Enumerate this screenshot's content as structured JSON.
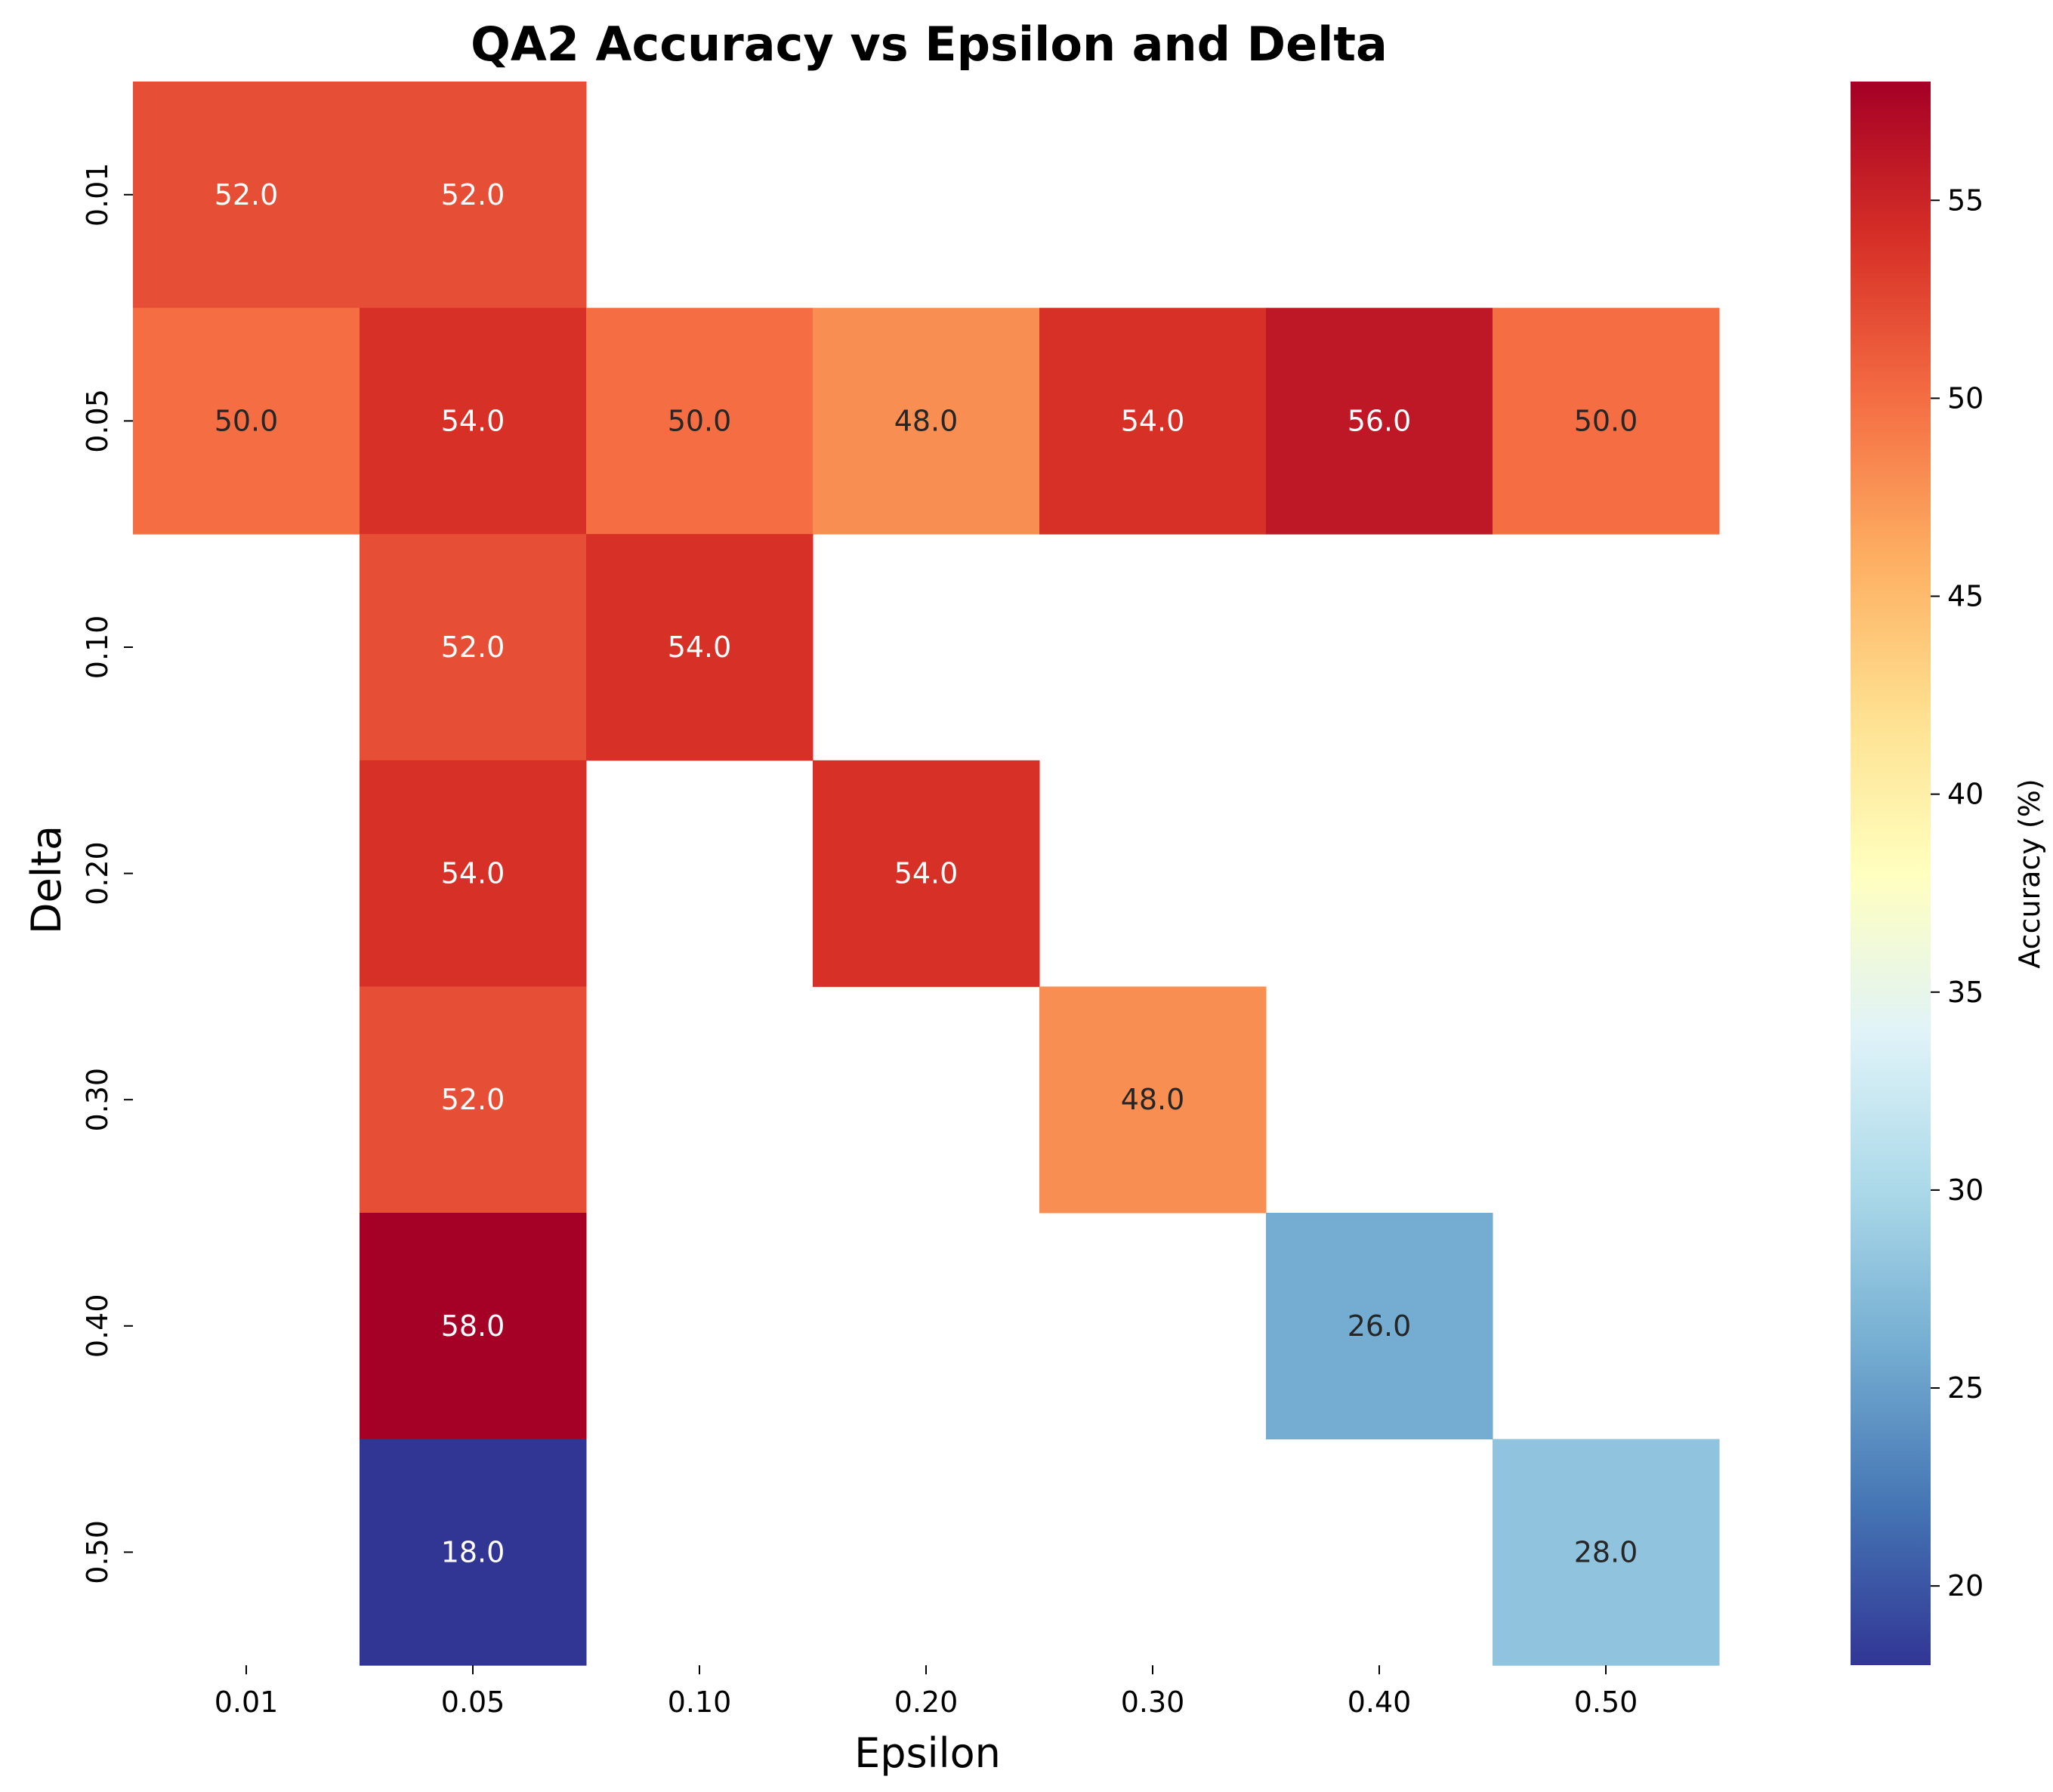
{
  "chart_data": {
    "type": "heatmap",
    "title": "QA2 Accuracy vs Epsilon and Delta",
    "xlabel": "Epsilon",
    "ylabel": "Delta",
    "x_categories": [
      "0.01",
      "0.05",
      "0.10",
      "0.20",
      "0.30",
      "0.40",
      "0.50"
    ],
    "y_categories": [
      "0.01",
      "0.05",
      "0.10",
      "0.20",
      "0.30",
      "0.40",
      "0.50"
    ],
    "values": [
      [
        52.0,
        52.0,
        null,
        null,
        null,
        null,
        null
      ],
      [
        50.0,
        54.0,
        50.0,
        48.0,
        54.0,
        56.0,
        50.0
      ],
      [
        null,
        52.0,
        54.0,
        null,
        null,
        null,
        null
      ],
      [
        null,
        54.0,
        null,
        54.0,
        null,
        null,
        null
      ],
      [
        null,
        52.0,
        null,
        null,
        48.0,
        null,
        null
      ],
      [
        null,
        58.0,
        null,
        null,
        null,
        26.0,
        null
      ],
      [
        null,
        18.0,
        null,
        null,
        null,
        null,
        28.0
      ]
    ],
    "cell_labels": [
      [
        "52.0",
        "52.0",
        "",
        "",
        "",
        "",
        ""
      ],
      [
        "50.0",
        "54.0",
        "50.0",
        "48.0",
        "54.0",
        "56.0",
        "50.0"
      ],
      [
        "",
        "52.0",
        "54.0",
        "",
        "",
        "",
        ""
      ],
      [
        "",
        "54.0",
        "",
        "54.0",
        "",
        "",
        ""
      ],
      [
        "",
        "52.0",
        "",
        "",
        "48.0",
        "",
        ""
      ],
      [
        "",
        "58.0",
        "",
        "",
        "",
        "26.0",
        ""
      ],
      [
        "",
        "18.0",
        "",
        "",
        "",
        "",
        "28.0"
      ]
    ],
    "colormap": "RdYlBu_r",
    "vmin": 18.0,
    "vmax": 58.0,
    "colorbar": {
      "label": "Accuracy (%)",
      "ticks": [
        20,
        25,
        30,
        35,
        40,
        45,
        50,
        55
      ]
    },
    "grid": false
  }
}
